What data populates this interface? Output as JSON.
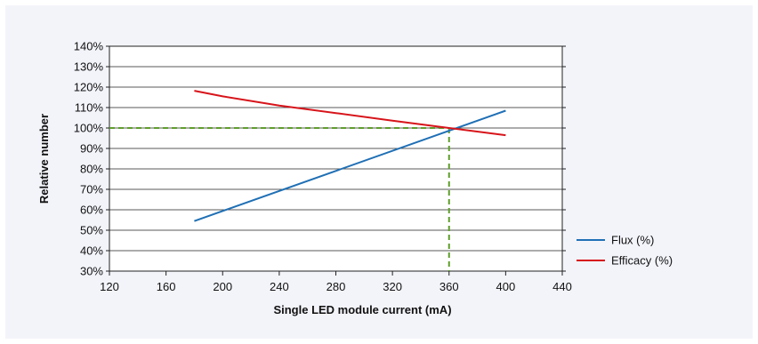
{
  "chart_data": {
    "type": "line",
    "xlabel": "Single LED module current (mA)",
    "ylabel": "Relative number",
    "xlim": [
      120,
      440
    ],
    "ylim": [
      30,
      140
    ],
    "x_ticks": [
      120,
      160,
      200,
      240,
      280,
      320,
      360,
      400,
      440
    ],
    "y_ticks": [
      30,
      40,
      50,
      60,
      70,
      80,
      90,
      100,
      110,
      120,
      130,
      140
    ],
    "y_tick_format": "percent",
    "grid": "horizontal",
    "legend_position": "right",
    "series": [
      {
        "name": "Flux (%)",
        "color": "#1f6fb5",
        "x": [
          180,
          400
        ],
        "y": [
          54.5,
          108.5
        ]
      },
      {
        "name": "Efficacy (%)",
        "color": "#d7141a",
        "x": [
          180,
          200,
          240,
          280,
          320,
          360,
          400
        ],
        "y": [
          118.2,
          115.5,
          111.0,
          107.3,
          103.6,
          100.0,
          96.5
        ]
      }
    ],
    "reference": {
      "x": 360,
      "y": 100,
      "color": "#5f9e2a",
      "style": "dashed"
    }
  }
}
